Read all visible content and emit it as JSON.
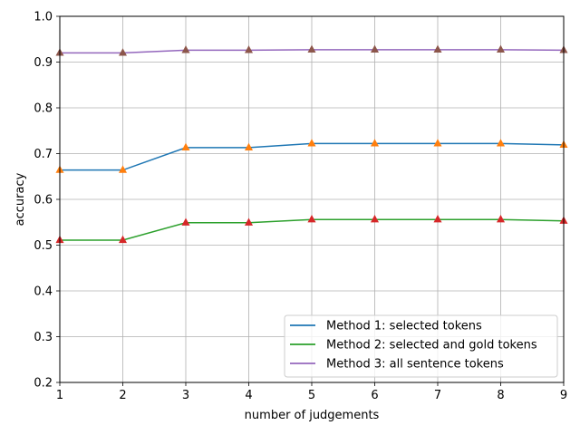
{
  "chart_data": {
    "type": "line",
    "title": "",
    "xlabel": "number of judgements",
    "ylabel": "accuracy",
    "x": [
      1,
      2,
      3,
      4,
      5,
      6,
      7,
      8,
      9
    ],
    "xlim": [
      1,
      9
    ],
    "ylim": [
      0.2,
      1.0
    ],
    "xticks": [
      "1",
      "2",
      "3",
      "4",
      "5",
      "6",
      "7",
      "8",
      "9"
    ],
    "yticks": [
      "0.2",
      "0.3",
      "0.4",
      "0.5",
      "0.6",
      "0.7",
      "0.8",
      "0.9",
      "1.0"
    ],
    "grid": true,
    "legend_position": "lower-right",
    "series": [
      {
        "name": "Method 1: selected tokens",
        "color": "#1f77b4",
        "marker_color": "#ff7f0e",
        "values": [
          0.664,
          0.664,
          0.713,
          0.713,
          0.722,
          0.722,
          0.722,
          0.722,
          0.719
        ]
      },
      {
        "name": "Method 2: selected and gold tokens",
        "color": "#2ca02c",
        "marker_color": "#d62728",
        "values": [
          0.511,
          0.511,
          0.549,
          0.549,
          0.556,
          0.556,
          0.556,
          0.556,
          0.553
        ]
      },
      {
        "name": "Method 3: all sentence tokens",
        "color": "#9467bd",
        "marker_color": "#8c564b",
        "values": [
          0.92,
          0.92,
          0.926,
          0.926,
          0.927,
          0.927,
          0.927,
          0.927,
          0.926
        ]
      }
    ]
  }
}
